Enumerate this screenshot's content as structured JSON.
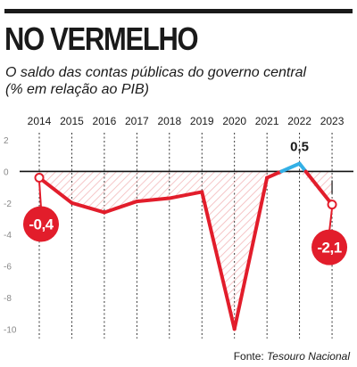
{
  "header": {
    "title": "NO VERMELHO",
    "subtitle_line1": "O saldo das contas públicas do governo central",
    "subtitle_line2": "(% em relação ao PIB)"
  },
  "chart_data": {
    "type": "line",
    "title": "NO VERMELHO",
    "subtitle": "O saldo das contas públicas do governo central (% em relação ao PIB)",
    "x": [
      "2014",
      "2015",
      "2016",
      "2017",
      "2018",
      "2019",
      "2020",
      "2021",
      "2022",
      "2023"
    ],
    "series": [
      {
        "values": [
          -0.4,
          -2.0,
          -2.6,
          -1.9,
          -1.7,
          -1.3,
          -10.0,
          -0.4,
          0.5,
          -2.1
        ]
      }
    ],
    "y_ticks": [
      "2",
      "0",
      "-2",
      "-4",
      "-6",
      "-8",
      "-10"
    ],
    "ylim": [
      -10.6,
      2.4
    ],
    "annotations": [
      {
        "x": "2014",
        "label": "-0,4"
      },
      {
        "x": "2022",
        "label": "0,5"
      },
      {
        "x": "2023",
        "label": "-2,1"
      }
    ],
    "colors": {
      "negative": "#e21d2b",
      "positive": "#33b0e6",
      "hatch": "#f3b8ba",
      "grid": "#222222"
    },
    "grid": "vertical dashed"
  },
  "footer": {
    "source_label": "Fonte: ",
    "source_name": "Tesouro Nacional"
  }
}
